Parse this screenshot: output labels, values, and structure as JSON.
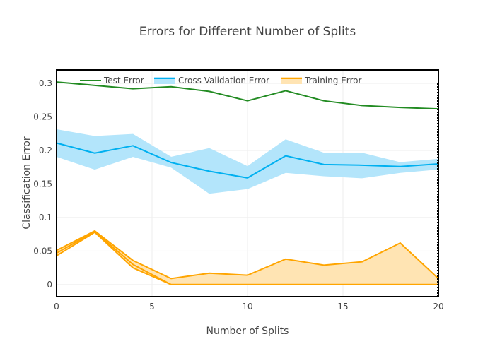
{
  "chart_data": {
    "type": "line",
    "title": "Errors for Different Number of Splits",
    "xlabel": "Number of Splits",
    "ylabel": "Classification Error",
    "xlim": [
      0,
      20
    ],
    "ylim": [
      -0.018,
      0.32
    ],
    "xticks": [
      0,
      5,
      10,
      15,
      20
    ],
    "yticks": [
      0,
      0.05,
      0.1,
      0.15,
      0.2,
      0.25,
      0.3
    ],
    "ytick_labels": [
      "0",
      "0.05",
      "0.1",
      "0.15",
      "0.2",
      "0.25",
      "0.3"
    ],
    "grid": true,
    "legend_position": "top-left inside",
    "x": [
      0,
      2,
      4,
      6,
      8,
      10,
      12,
      14,
      16,
      18,
      20
    ],
    "series": [
      {
        "name": "Test Error",
        "color": "#228b22",
        "values": [
          0.302,
          0.297,
          0.292,
          0.295,
          0.288,
          0.274,
          0.289,
          0.274,
          0.267,
          0.264,
          0.262
        ]
      },
      {
        "name": "Cross Validation Error",
        "color": "#00b0f0",
        "band_color": "#b3e5fb",
        "values": [
          0.211,
          0.196,
          0.207,
          0.182,
          0.169,
          0.159,
          0.192,
          0.179,
          0.178,
          0.176,
          0.18
        ],
        "upper": [
          0.231,
          0.221,
          0.224,
          0.19,
          0.203,
          0.176,
          0.216,
          0.196,
          0.196,
          0.182,
          0.187
        ],
        "lower": [
          0.191,
          0.172,
          0.191,
          0.175,
          0.136,
          0.143,
          0.167,
          0.162,
          0.159,
          0.167,
          0.172
        ]
      },
      {
        "name": "Training Error",
        "color": "#ffa500",
        "band_color": "#ffe4b3",
        "values": [
          0.047,
          0.079,
          0.03,
          0.0,
          0.0,
          0.0,
          0.0,
          0.0,
          0.0,
          0.0,
          0.0
        ],
        "upper": [
          0.051,
          0.08,
          0.036,
          0.009,
          0.017,
          0.014,
          0.038,
          0.029,
          0.034,
          0.062,
          0.009
        ],
        "lower": [
          0.043,
          0.078,
          0.025,
          0.0,
          0.0,
          0.0,
          0.0,
          0.0,
          0.0,
          0.0,
          0.0
        ]
      }
    ]
  }
}
